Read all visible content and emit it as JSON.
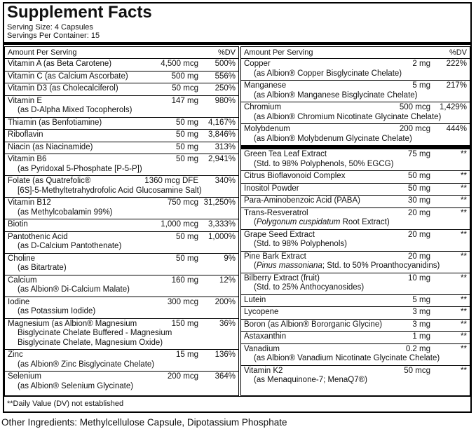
{
  "title": "Supplement Facts",
  "serving_size": "Serving Size: 4 Capsules",
  "servings_per_container": "Servings Per Container: 15",
  "columns": [
    {
      "header": {
        "amount": "Amount Per Serving",
        "dv": "%DV"
      },
      "groups": [
        [
          {
            "name": "Vitamin A (as Beta Carotene)",
            "amount": "4,500 mcg",
            "dv": "500%"
          },
          {
            "name": "Vitamin C (as Calcium Ascorbate)",
            "amount": "500 mg",
            "dv": "556%"
          },
          {
            "name": "Vitamin D3 (as Cholecalciferol)",
            "amount": "50 mcg",
            "dv": "250%"
          },
          {
            "name": "Vitamin E",
            "amount": "147 mg",
            "dv": "980%",
            "sub": [
              "(as D-Alpha Mixed Tocopherols)"
            ]
          },
          {
            "name": "Thiamin (as Benfotiamine)",
            "amount": "50 mg",
            "dv": "4,167%"
          },
          {
            "name": "Riboflavin",
            "amount": "50 mg",
            "dv": "3,846%"
          },
          {
            "name": "Niacin (as Niacinamide)",
            "amount": "50 mg",
            "dv": "313%"
          },
          {
            "name": "Vitamin B6",
            "amount": "50 mg",
            "dv": "2,941%",
            "sub": [
              "(as Pyridoxal 5-Phosphate [P-5-P])"
            ]
          },
          {
            "name": "Folate (as Quatrefolic®",
            "amount": "1360 mcg DFE",
            "dv": "340%",
            "sub": [
              "[6S]-5-Methyltetrahydrofolic Acid Glucosamine Salt)"
            ]
          },
          {
            "name": "Vitamin B12",
            "amount": "750 mcg",
            "dv": "31,250%",
            "sub": [
              "(as Methylcobalamin 99%)"
            ]
          },
          {
            "name": "Biotin",
            "amount": "1,000 mcg",
            "dv": "3,333%"
          },
          {
            "name": "Pantothenic Acid",
            "amount": "50 mg",
            "dv": "1,000%",
            "sub": [
              "(as D-Calcium Pantothenate)"
            ]
          },
          {
            "name": "Choline",
            "amount": "50 mg",
            "dv": "9%",
            "sub": [
              "(as Bitartrate)"
            ]
          },
          {
            "name": "Calcium",
            "amount": "160 mg",
            "dv": "12%",
            "sub": [
              "(as Albion® Di-Calcium Malate)"
            ]
          },
          {
            "name": "Iodine",
            "amount": "300 mcg",
            "dv": "200%",
            "sub": [
              "(as Potassium Iodide)"
            ]
          },
          {
            "name": "Magnesium (as Albion® Magnesium",
            "amount": "150 mg",
            "dv": "36%",
            "sub": [
              "Bisglycinate Chelate Buffered - Magnesium",
              "Bisglycinate Chelate, Magnesium Oxide)"
            ]
          },
          {
            "name": "Zinc",
            "amount": "15 mg",
            "dv": "136%",
            "sub": [
              "(as Albion® Zinc Bisglycinate Chelate)"
            ]
          },
          {
            "name": "Selenium",
            "amount": "200 mcg",
            "dv": "364%",
            "sub": [
              "(as Albion® Selenium Glycinate)"
            ]
          }
        ]
      ]
    },
    {
      "header": {
        "amount": "Amount Per Serving",
        "dv": "%DV"
      },
      "groups": [
        [
          {
            "name": "Copper",
            "amount": "2 mg",
            "dv": "222%",
            "sub": [
              "(as Albion® Copper Bisglycinate Chelate)"
            ]
          },
          {
            "name": "Manganese",
            "amount": "5 mg",
            "dv": "217%",
            "sub": [
              "(as Albion® Manganese Bisglycinate Chelate)"
            ]
          },
          {
            "name": "Chromium",
            "amount": "500 mcg",
            "dv": "1,429%",
            "sub": [
              "(as Albion® Chromium Nicotinate Glycinate Chelate)"
            ]
          },
          {
            "name": "Molybdenum",
            "amount": "200 mcg",
            "dv": "444%",
            "sub": [
              "(as Albion® Molybdenum Glycinate Chelate)"
            ]
          }
        ],
        [
          {
            "name": "Green Tea Leaf Extract",
            "amount": "75 mg",
            "dv": "**",
            "sub": [
              "(Std. to 98% Polyphenols, 50% EGCG)"
            ]
          },
          {
            "name": "Citrus Bioflavonoid Complex",
            "amount": "50 mg",
            "dv": "**"
          },
          {
            "name": "Inositol Powder",
            "amount": "50 mg",
            "dv": "**"
          },
          {
            "name": "Para-Aminobenzoic Acid (PABA)",
            "amount": "30 mg",
            "dv": "**"
          },
          {
            "name": "Trans-Resveratrol",
            "amount": "20 mg",
            "dv": "**",
            "sub_parts": [
              "(",
              "Polygonum cuspidatum",
              " Root Extract)"
            ]
          },
          {
            "name": "Grape Seed Extract",
            "amount": "20 mg",
            "dv": "**",
            "sub": [
              "(Std. to 98% Polyphenols)"
            ]
          },
          {
            "name": "Pine Bark Extract",
            "amount": "20 mg",
            "dv": "**",
            "sub_parts": [
              "(",
              "Pinus massoniana",
              "; Std. to 50% Proanthocyanidins)"
            ]
          },
          {
            "name": "Bilberry Extract (fruit)",
            "amount": "10 mg",
            "dv": "**",
            "sub": [
              "(Std. to 25% Anthocyanosides)"
            ]
          },
          {
            "name": "Lutein",
            "amount": "5 mg",
            "dv": "**"
          },
          {
            "name": "Lycopene",
            "amount": "3 mg",
            "dv": "**"
          },
          {
            "name": "Boron (as Albion® Bororganic Glycine)",
            "amount": "3 mg",
            "dv": "**"
          },
          {
            "name": "Astaxanthin",
            "amount": "1 mg",
            "dv": "**"
          },
          {
            "name": "Vanadium",
            "amount": "0.2 mg",
            "dv": "**",
            "sub": [
              "(as Albion® Vanadium Nicotinate Glycinate Chelate)"
            ]
          },
          {
            "name": "Vitamin K2",
            "amount": "50 mcg",
            "dv": "**",
            "sub": [
              "(as Menaquinone-7; MenaQ7®)"
            ]
          }
        ]
      ]
    }
  ],
  "footnote": "**Daily Value (DV) not established",
  "other_ingredients": "Other Ingredients: Methylcellulose Capsule, Dipotassium Phosphate"
}
